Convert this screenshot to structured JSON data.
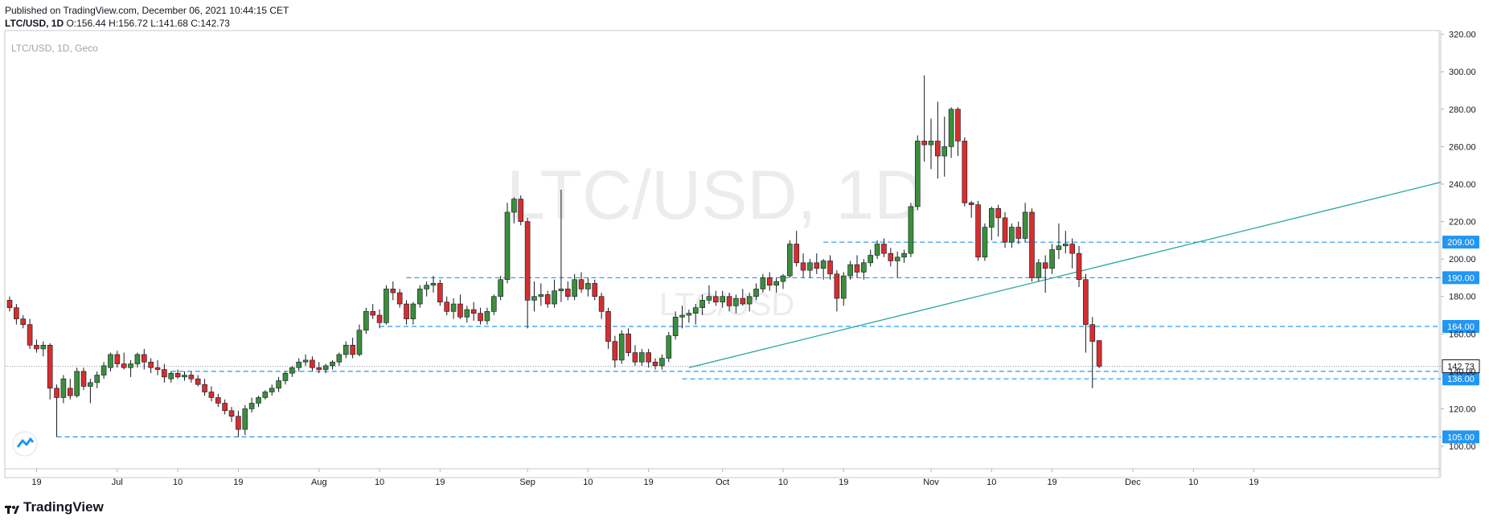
{
  "header": {
    "published": "Published on TradingView.com, December 06, 2021 10:44:15 CET",
    "symbol_line": "LTC/USD, 1D",
    "ohlc": "O:156.44 H:156.72 L:141.68 C:142.73"
  },
  "chart_label": "LTC/USD, 1D, Geco",
  "watermark": {
    "main": "LTC/USD, 1D",
    "sub": "LTC/USD"
  },
  "footer": {
    "brand": "TradingView"
  },
  "colors": {
    "up": "#3a8f3a",
    "down": "#d62e2e",
    "levels": "#2196f3",
    "trendline": "#26a69a",
    "axis": "#131722"
  },
  "chart_data": {
    "type": "candlestick",
    "y_axis": {
      "min": 88,
      "max": 322,
      "ticks": [
        "100.00",
        "120.00",
        "140.00",
        "160.00",
        "180.00",
        "200.00",
        "220.00",
        "240.00",
        "260.00",
        "280.00",
        "300.00",
        "320.00"
      ]
    },
    "x_ticks": [
      "19",
      "Jul",
      "10",
      "19",
      "Aug",
      "10",
      "19",
      "Sep",
      "10",
      "19",
      "Oct",
      "10",
      "19",
      "Nov",
      "10",
      "19",
      "Dec",
      "10",
      "19"
    ],
    "last_price": 142.73,
    "horizontal_levels": [
      209,
      190,
      164,
      140,
      136,
      105
    ],
    "level_labels": [
      "209.00",
      "190.00",
      "164.00",
      "140.00",
      "136.00",
      "105.00"
    ],
    "last_label": "142.73",
    "trendline": {
      "from": {
        "date": "2021-09-29",
        "price": 142
      },
      "to": {
        "date": "2021-12-24",
        "price": 241
      }
    },
    "candles": [
      {
        "o": 178,
        "h": 180,
        "l": 172,
        "c": 174
      },
      {
        "o": 174,
        "h": 176,
        "l": 165,
        "c": 168
      },
      {
        "o": 168,
        "h": 170,
        "l": 163,
        "c": 165
      },
      {
        "o": 165,
        "h": 168,
        "l": 152,
        "c": 154
      },
      {
        "o": 154,
        "h": 157,
        "l": 150,
        "c": 152
      },
      {
        "o": 152,
        "h": 156,
        "l": 148,
        "c": 154
      },
      {
        "o": 154,
        "h": 155,
        "l": 125,
        "c": 131
      },
      {
        "o": 131,
        "h": 133,
        "l": 105,
        "c": 126
      },
      {
        "o": 126,
        "h": 138,
        "l": 123,
        "c": 136
      },
      {
        "o": 131,
        "h": 136,
        "l": 125,
        "c": 127
      },
      {
        "o": 127,
        "h": 142,
        "l": 126,
        "c": 140
      },
      {
        "o": 140,
        "h": 142,
        "l": 130,
        "c": 132
      },
      {
        "o": 132,
        "h": 136,
        "l": 123,
        "c": 134
      },
      {
        "o": 134,
        "h": 140,
        "l": 131,
        "c": 138
      },
      {
        "o": 138,
        "h": 145,
        "l": 136,
        "c": 143
      },
      {
        "o": 142,
        "h": 150,
        "l": 140,
        "c": 149
      },
      {
        "o": 149,
        "h": 151,
        "l": 142,
        "c": 144
      },
      {
        "o": 144,
        "h": 150,
        "l": 141,
        "c": 142
      },
      {
        "o": 142,
        "h": 146,
        "l": 137,
        "c": 144
      },
      {
        "o": 144,
        "h": 150,
        "l": 142,
        "c": 149
      },
      {
        "o": 149,
        "h": 152,
        "l": 141,
        "c": 145
      },
      {
        "o": 145,
        "h": 147,
        "l": 139,
        "c": 142
      },
      {
        "o": 142,
        "h": 146,
        "l": 138,
        "c": 141
      },
      {
        "o": 141,
        "h": 144,
        "l": 134,
        "c": 137
      },
      {
        "o": 136,
        "h": 140,
        "l": 134,
        "c": 139
      },
      {
        "o": 139,
        "h": 141,
        "l": 136,
        "c": 137
      },
      {
        "o": 137,
        "h": 140,
        "l": 135,
        "c": 138
      },
      {
        "o": 138,
        "h": 140,
        "l": 134,
        "c": 136
      },
      {
        "o": 136,
        "h": 138,
        "l": 132,
        "c": 133
      },
      {
        "o": 133,
        "h": 136,
        "l": 127,
        "c": 129
      },
      {
        "o": 129,
        "h": 132,
        "l": 124,
        "c": 126
      },
      {
        "o": 126,
        "h": 128,
        "l": 121,
        "c": 123
      },
      {
        "o": 123,
        "h": 125,
        "l": 117,
        "c": 119
      },
      {
        "o": 119,
        "h": 121,
        "l": 113,
        "c": 116
      },
      {
        "o": 116,
        "h": 119,
        "l": 105,
        "c": 109
      },
      {
        "o": 109,
        "h": 122,
        "l": 106,
        "c": 120
      },
      {
        "o": 120,
        "h": 126,
        "l": 118,
        "c": 123
      },
      {
        "o": 123,
        "h": 127,
        "l": 121,
        "c": 126
      },
      {
        "o": 126,
        "h": 130,
        "l": 125,
        "c": 129
      },
      {
        "o": 129,
        "h": 133,
        "l": 127,
        "c": 131
      },
      {
        "o": 131,
        "h": 137,
        "l": 129,
        "c": 135
      },
      {
        "o": 135,
        "h": 140,
        "l": 133,
        "c": 139
      },
      {
        "o": 139,
        "h": 143,
        "l": 137,
        "c": 142
      },
      {
        "o": 142,
        "h": 147,
        "l": 140,
        "c": 145
      },
      {
        "o": 145,
        "h": 149,
        "l": 143,
        "c": 146
      },
      {
        "o": 146,
        "h": 148,
        "l": 140,
        "c": 142
      },
      {
        "o": 142,
        "h": 145,
        "l": 139,
        "c": 141
      },
      {
        "o": 141,
        "h": 144,
        "l": 139,
        "c": 143
      },
      {
        "o": 143,
        "h": 146,
        "l": 141,
        "c": 145
      },
      {
        "o": 145,
        "h": 150,
        "l": 143,
        "c": 149
      },
      {
        "o": 149,
        "h": 156,
        "l": 147,
        "c": 154
      },
      {
        "o": 154,
        "h": 158,
        "l": 147,
        "c": 149
      },
      {
        "o": 149,
        "h": 165,
        "l": 148,
        "c": 162
      },
      {
        "o": 162,
        "h": 174,
        "l": 160,
        "c": 172
      },
      {
        "o": 172,
        "h": 176,
        "l": 168,
        "c": 170
      },
      {
        "o": 170,
        "h": 173,
        "l": 163,
        "c": 166
      },
      {
        "o": 166,
        "h": 186,
        "l": 165,
        "c": 184
      },
      {
        "o": 184,
        "h": 188,
        "l": 178,
        "c": 182
      },
      {
        "o": 182,
        "h": 184,
        "l": 174,
        "c": 176
      },
      {
        "o": 176,
        "h": 178,
        "l": 165,
        "c": 168
      },
      {
        "o": 168,
        "h": 177,
        "l": 165,
        "c": 176
      },
      {
        "o": 176,
        "h": 186,
        "l": 174,
        "c": 184
      },
      {
        "o": 184,
        "h": 188,
        "l": 180,
        "c": 186
      },
      {
        "o": 186,
        "h": 191,
        "l": 182,
        "c": 187
      },
      {
        "o": 187,
        "h": 189,
        "l": 175,
        "c": 177
      },
      {
        "o": 177,
        "h": 180,
        "l": 170,
        "c": 172
      },
      {
        "o": 172,
        "h": 179,
        "l": 168,
        "c": 176
      },
      {
        "o": 176,
        "h": 181,
        "l": 168,
        "c": 169
      },
      {
        "o": 169,
        "h": 175,
        "l": 166,
        "c": 173
      },
      {
        "o": 173,
        "h": 177,
        "l": 167,
        "c": 171
      },
      {
        "o": 171,
        "h": 174,
        "l": 165,
        "c": 167
      },
      {
        "o": 167,
        "h": 174,
        "l": 165,
        "c": 172
      },
      {
        "o": 172,
        "h": 181,
        "l": 170,
        "c": 180
      },
      {
        "o": 180,
        "h": 191,
        "l": 178,
        "c": 189
      },
      {
        "o": 189,
        "h": 230,
        "l": 187,
        "c": 225
      },
      {
        "o": 225,
        "h": 233,
        "l": 219,
        "c": 232
      },
      {
        "o": 232,
        "h": 234,
        "l": 218,
        "c": 220
      },
      {
        "o": 220,
        "h": 222,
        "l": 163,
        "c": 178
      },
      {
        "o": 178,
        "h": 188,
        "l": 172,
        "c": 180
      },
      {
        "o": 180,
        "h": 187,
        "l": 175,
        "c": 181
      },
      {
        "o": 181,
        "h": 183,
        "l": 174,
        "c": 176
      },
      {
        "o": 176,
        "h": 189,
        "l": 174,
        "c": 183
      },
      {
        "o": 183,
        "h": 237,
        "l": 177,
        "c": 184
      },
      {
        "o": 184,
        "h": 188,
        "l": 178,
        "c": 180
      },
      {
        "o": 180,
        "h": 192,
        "l": 178,
        "c": 189
      },
      {
        "o": 189,
        "h": 193,
        "l": 182,
        "c": 184
      },
      {
        "o": 184,
        "h": 190,
        "l": 180,
        "c": 187
      },
      {
        "o": 187,
        "h": 189,
        "l": 178,
        "c": 180
      },
      {
        "o": 180,
        "h": 182,
        "l": 168,
        "c": 172
      },
      {
        "o": 172,
        "h": 174,
        "l": 152,
        "c": 156
      },
      {
        "o": 156,
        "h": 159,
        "l": 142,
        "c": 146
      },
      {
        "o": 146,
        "h": 162,
        "l": 144,
        "c": 160
      },
      {
        "o": 160,
        "h": 163,
        "l": 148,
        "c": 150
      },
      {
        "o": 150,
        "h": 154,
        "l": 143,
        "c": 145
      },
      {
        "o": 145,
        "h": 152,
        "l": 143,
        "c": 150
      },
      {
        "o": 150,
        "h": 152,
        "l": 142,
        "c": 145
      },
      {
        "o": 145,
        "h": 147,
        "l": 141,
        "c": 143
      },
      {
        "o": 143,
        "h": 149,
        "l": 141,
        "c": 147
      },
      {
        "o": 147,
        "h": 161,
        "l": 145,
        "c": 159
      },
      {
        "o": 159,
        "h": 172,
        "l": 157,
        "c": 169
      },
      {
        "o": 169,
        "h": 175,
        "l": 163,
        "c": 170
      },
      {
        "o": 170,
        "h": 173,
        "l": 166,
        "c": 171
      },
      {
        "o": 171,
        "h": 176,
        "l": 165,
        "c": 174
      },
      {
        "o": 174,
        "h": 181,
        "l": 170,
        "c": 178
      },
      {
        "o": 178,
        "h": 186,
        "l": 176,
        "c": 180
      },
      {
        "o": 180,
        "h": 183,
        "l": 175,
        "c": 177
      },
      {
        "o": 177,
        "h": 183,
        "l": 174,
        "c": 180
      },
      {
        "o": 180,
        "h": 182,
        "l": 172,
        "c": 175
      },
      {
        "o": 175,
        "h": 181,
        "l": 171,
        "c": 179
      },
      {
        "o": 179,
        "h": 184,
        "l": 175,
        "c": 176
      },
      {
        "o": 176,
        "h": 182,
        "l": 172,
        "c": 180
      },
      {
        "o": 180,
        "h": 187,
        "l": 178,
        "c": 184
      },
      {
        "o": 184,
        "h": 192,
        "l": 182,
        "c": 190
      },
      {
        "o": 190,
        "h": 193,
        "l": 183,
        "c": 186
      },
      {
        "o": 186,
        "h": 190,
        "l": 182,
        "c": 188
      },
      {
        "o": 188,
        "h": 192,
        "l": 184,
        "c": 191
      },
      {
        "o": 191,
        "h": 210,
        "l": 190,
        "c": 208
      },
      {
        "o": 208,
        "h": 215,
        "l": 196,
        "c": 198
      },
      {
        "o": 198,
        "h": 203,
        "l": 190,
        "c": 194
      },
      {
        "o": 194,
        "h": 200,
        "l": 190,
        "c": 198
      },
      {
        "o": 198,
        "h": 203,
        "l": 192,
        "c": 195
      },
      {
        "o": 195,
        "h": 200,
        "l": 189,
        "c": 199
      },
      {
        "o": 199,
        "h": 202,
        "l": 189,
        "c": 192
      },
      {
        "o": 192,
        "h": 194,
        "l": 172,
        "c": 179
      },
      {
        "o": 179,
        "h": 193,
        "l": 175,
        "c": 191
      },
      {
        "o": 191,
        "h": 199,
        "l": 189,
        "c": 197
      },
      {
        "o": 197,
        "h": 202,
        "l": 190,
        "c": 193
      },
      {
        "o": 193,
        "h": 200,
        "l": 189,
        "c": 198
      },
      {
        "o": 198,
        "h": 205,
        "l": 196,
        "c": 202
      },
      {
        "o": 202,
        "h": 210,
        "l": 200,
        "c": 208
      },
      {
        "o": 208,
        "h": 211,
        "l": 201,
        "c": 203
      },
      {
        "o": 203,
        "h": 206,
        "l": 196,
        "c": 199
      },
      {
        "o": 199,
        "h": 204,
        "l": 190,
        "c": 201
      },
      {
        "o": 201,
        "h": 205,
        "l": 198,
        "c": 203
      },
      {
        "o": 203,
        "h": 230,
        "l": 201,
        "c": 228
      },
      {
        "o": 228,
        "h": 266,
        "l": 226,
        "c": 263
      },
      {
        "o": 263,
        "h": 298,
        "l": 252,
        "c": 261
      },
      {
        "o": 261,
        "h": 275,
        "l": 248,
        "c": 263
      },
      {
        "o": 263,
        "h": 284,
        "l": 243,
        "c": 255
      },
      {
        "o": 255,
        "h": 276,
        "l": 244,
        "c": 260
      },
      {
        "o": 260,
        "h": 281,
        "l": 254,
        "c": 280
      },
      {
        "o": 280,
        "h": 281,
        "l": 255,
        "c": 263
      },
      {
        "o": 263,
        "h": 265,
        "l": 228,
        "c": 230
      },
      {
        "o": 230,
        "h": 231,
        "l": 222,
        "c": 229
      },
      {
        "o": 229,
        "h": 231,
        "l": 199,
        "c": 201
      },
      {
        "o": 201,
        "h": 219,
        "l": 199,
        "c": 217
      },
      {
        "o": 217,
        "h": 228,
        "l": 210,
        "c": 227
      },
      {
        "o": 227,
        "h": 229,
        "l": 212,
        "c": 222
      },
      {
        "o": 222,
        "h": 225,
        "l": 206,
        "c": 209
      },
      {
        "o": 209,
        "h": 219,
        "l": 206,
        "c": 217
      },
      {
        "o": 217,
        "h": 220,
        "l": 208,
        "c": 211
      },
      {
        "o": 211,
        "h": 230,
        "l": 209,
        "c": 225
      },
      {
        "o": 225,
        "h": 227,
        "l": 188,
        "c": 190
      },
      {
        "o": 190,
        "h": 200,
        "l": 188,
        "c": 198
      },
      {
        "o": 198,
        "h": 202,
        "l": 182,
        "c": 195
      },
      {
        "o": 195,
        "h": 208,
        "l": 192,
        "c": 205
      },
      {
        "o": 205,
        "h": 219,
        "l": 200,
        "c": 207
      },
      {
        "o": 207,
        "h": 215,
        "l": 203,
        "c": 208
      },
      {
        "o": 208,
        "h": 211,
        "l": 195,
        "c": 203
      },
      {
        "o": 203,
        "h": 207,
        "l": 185,
        "c": 189
      },
      {
        "o": 189,
        "h": 192,
        "l": 150,
        "c": 165
      },
      {
        "o": 165,
        "h": 169,
        "l": 131,
        "c": 156
      },
      {
        "o": 156.44,
        "h": 156.72,
        "l": 141.68,
        "c": 142.73
      }
    ]
  }
}
